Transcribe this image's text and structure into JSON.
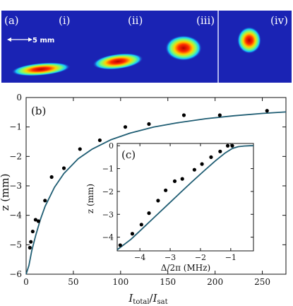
{
  "images_panel": {
    "label": "(a)",
    "sublabels": [
      "(i)",
      "(ii)",
      "(iii)",
      "(iv)"
    ],
    "scale_bar_label": "5 mm",
    "background_color": "#1a23b4"
  },
  "chart_data": [
    {
      "panel_label": "(b)",
      "type": "scatter",
      "xlabel": "I_total/I_sat",
      "ylabel": "z (mm)",
      "xlim": [
        0,
        275
      ],
      "ylim": [
        -6,
        0
      ],
      "xticks": [
        0,
        50,
        100,
        150,
        200,
        250
      ],
      "yticks": [
        0,
        -1,
        -2,
        -3,
        -4,
        -5,
        -6
      ],
      "series": [
        {
          "kind": "points",
          "x": [
            4,
            5,
            7,
            10,
            13,
            20,
            27,
            40,
            57,
            78,
            105,
            130,
            167,
            205,
            255
          ],
          "y": [
            -5.1,
            -4.9,
            -4.55,
            -4.15,
            -4.2,
            -3.5,
            -2.7,
            -2.4,
            -1.75,
            -1.45,
            -1.0,
            -0.9,
            -0.6,
            -0.6,
            -0.45
          ]
        },
        {
          "kind": "fit",
          "x": [
            0,
            3,
            6,
            10,
            15,
            20,
            30,
            40,
            55,
            70,
            90,
            110,
            135,
            160,
            190,
            220,
            250,
            275
          ],
          "y": [
            -6.0,
            -5.7,
            -5.2,
            -4.7,
            -4.15,
            -3.7,
            -3.05,
            -2.58,
            -2.08,
            -1.75,
            -1.43,
            -1.21,
            -1.0,
            -0.86,
            -0.72,
            -0.62,
            -0.54,
            -0.49
          ]
        }
      ],
      "colors": {
        "fit": "#1f5d73",
        "points": "#000000"
      }
    },
    {
      "panel_label": "(c)",
      "type": "scatter",
      "xlabel": "Δ/2π (MHz)",
      "ylabel": "z (mm)",
      "xlim": [
        -4.75,
        -0.25
      ],
      "ylim": [
        -4.6,
        0.1
      ],
      "xticks": [
        -4,
        -3,
        -2,
        -1
      ],
      "yticks": [
        0,
        -1,
        -2,
        -3,
        -4
      ],
      "series": [
        {
          "kind": "points",
          "x": [
            -4.65,
            -4.25,
            -3.95,
            -3.7,
            -3.4,
            -3.15,
            -2.85,
            -2.6,
            -2.2,
            -1.95,
            -1.65,
            -1.35,
            -1.1,
            -0.95
          ],
          "y": [
            -4.35,
            -3.85,
            -3.45,
            -2.95,
            -2.4,
            -1.95,
            -1.55,
            -1.45,
            -1.05,
            -0.8,
            -0.5,
            -0.25,
            0.0,
            0.0
          ]
        },
        {
          "kind": "fit",
          "x": [
            -4.75,
            -4.3,
            -3.9,
            -3.5,
            -3.1,
            -2.7,
            -2.3,
            -1.9,
            -1.5,
            -1.2,
            -0.95,
            -0.75,
            -0.55,
            -0.35,
            -0.25
          ],
          "y": [
            -4.55,
            -4.1,
            -3.6,
            -3.1,
            -2.6,
            -2.1,
            -1.6,
            -1.12,
            -0.65,
            -0.33,
            -0.12,
            -0.04,
            -0.01,
            0.0,
            0.0
          ]
        }
      ],
      "colors": {
        "fit": "#1f5d73",
        "points": "#000000"
      }
    }
  ]
}
